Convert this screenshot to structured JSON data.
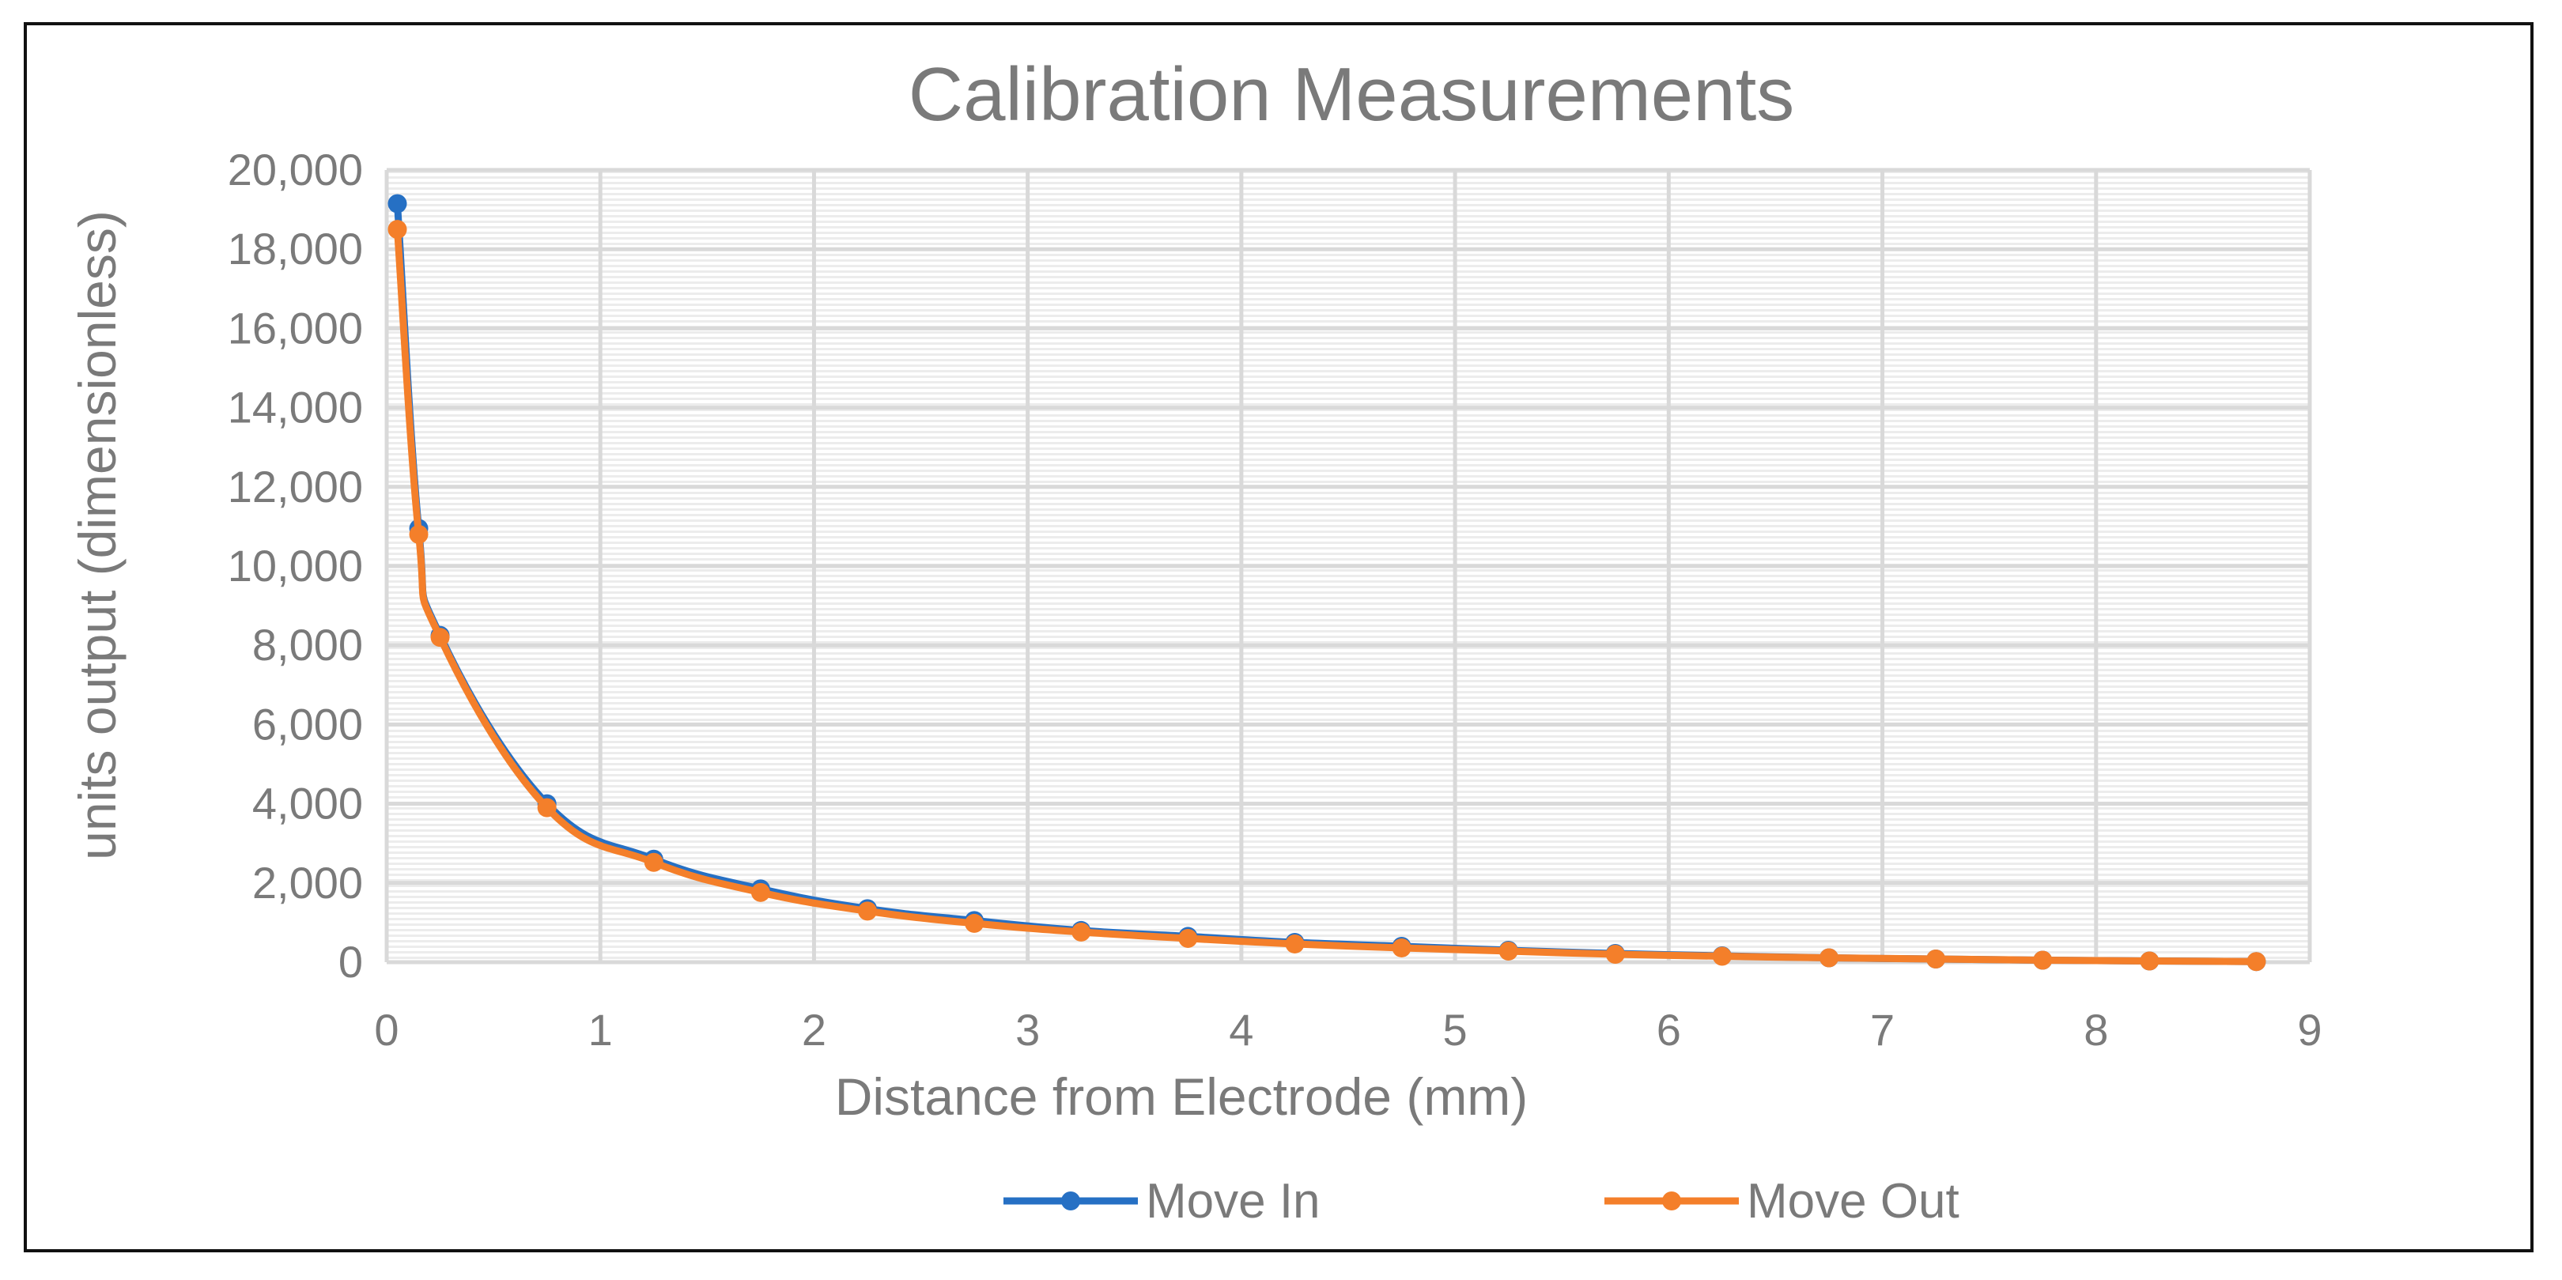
{
  "chart_data": {
    "type": "line",
    "title": "Calibration Measurements",
    "xlabel": "Distance from Electrode (mm)",
    "ylabel": "units output (dimensionless)",
    "xlim": [
      0,
      9
    ],
    "ylim": [
      0,
      20000
    ],
    "x_ticks": [
      0,
      1,
      2,
      3,
      4,
      5,
      6,
      7,
      8,
      9
    ],
    "y_ticks": [
      0,
      2000,
      4000,
      6000,
      8000,
      10000,
      12000,
      14000,
      16000,
      18000,
      20000
    ],
    "y_tick_labels": [
      "0",
      "2,000",
      "4,000",
      "6,000",
      "8,000",
      "10,000",
      "12,000",
      "14,000",
      "16,000",
      "18,000",
      "20,000"
    ],
    "x_tick_labels": [
      "0",
      "1",
      "2",
      "3",
      "4",
      "5",
      "6",
      "7",
      "8",
      "9"
    ],
    "grid": true,
    "legend_position": "bottom",
    "smooth": true,
    "series": [
      {
        "name": "Move In",
        "color": "#2670c4",
        "x": [
          0.05,
          0.15,
          0.25,
          0.75,
          1.25,
          1.75,
          2.25,
          2.75,
          3.25,
          3.75,
          4.25,
          4.75,
          5.25,
          5.75,
          6.25,
          6.75,
          7.25,
          7.75,
          8.25,
          8.75
        ],
        "y": [
          19150,
          10950,
          8250,
          4000,
          2600,
          1850,
          1350,
          1050,
          800,
          650,
          500,
          400,
          300,
          220,
          160,
          110,
          80,
          50,
          30,
          15
        ]
      },
      {
        "name": "Move Out",
        "color": "#f47f2a",
        "x": [
          0.05,
          0.15,
          0.25,
          0.75,
          1.25,
          1.75,
          2.25,
          2.75,
          3.25,
          3.75,
          4.25,
          4.75,
          5.25,
          5.75,
          6.25,
          6.75,
          7.25,
          7.75,
          8.25,
          8.75
        ],
        "y": [
          18500,
          10800,
          8200,
          3900,
          2520,
          1760,
          1290,
          980,
          760,
          600,
          460,
          360,
          280,
          200,
          150,
          110,
          80,
          50,
          30,
          15
        ]
      }
    ]
  }
}
